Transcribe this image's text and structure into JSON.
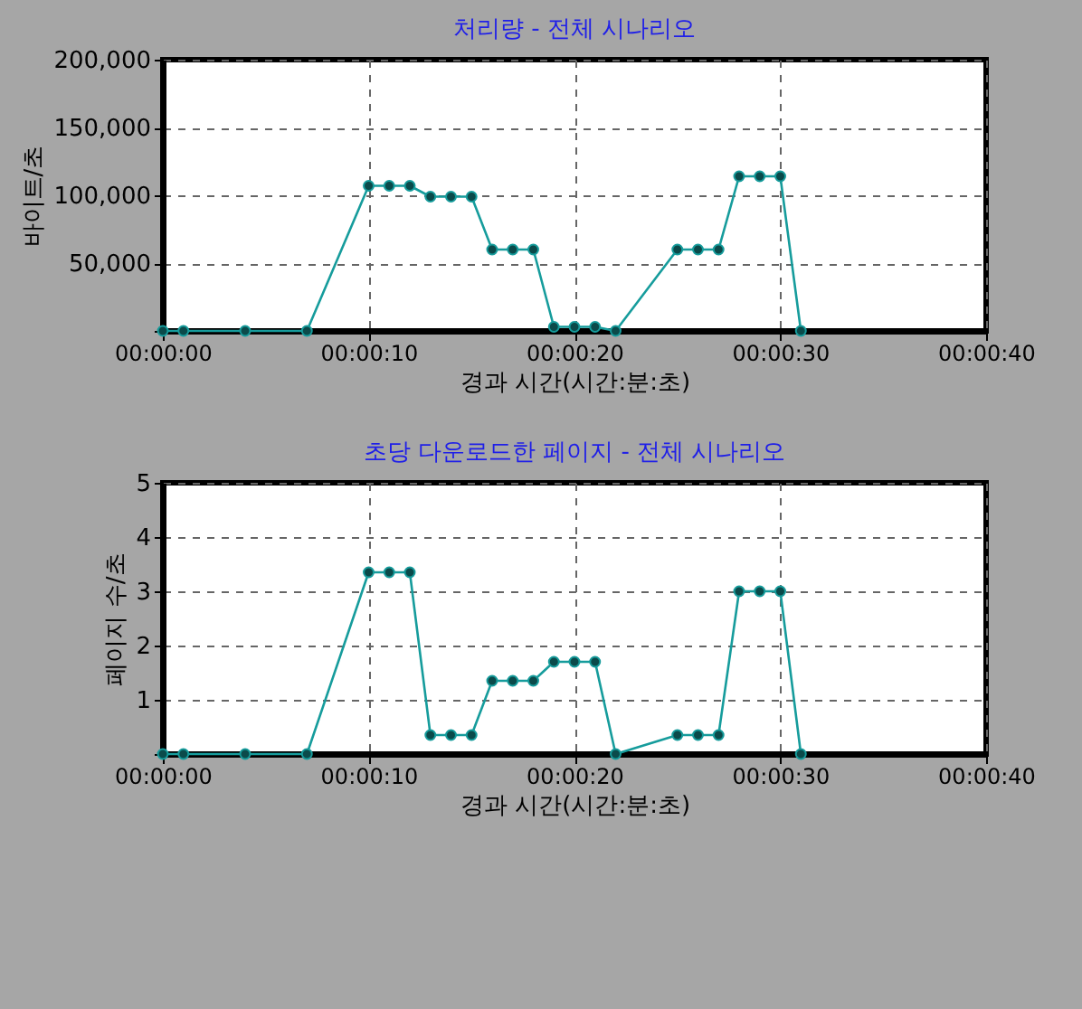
{
  "chart_data": [
    {
      "type": "line",
      "title": "처리량 - 전체 시나리오",
      "xlabel": "경과 시간(시간:분:초)",
      "ylabel": "바이트/초",
      "x": [
        0,
        1,
        4,
        7,
        10,
        11,
        12,
        13,
        14,
        15,
        16,
        17,
        18,
        19,
        20,
        21,
        22,
        25,
        26,
        27,
        28,
        29,
        30,
        31
      ],
      "series": [
        {
          "color": "#169c9c",
          "values": [
            0,
            0,
            0,
            0,
            107000,
            107000,
            107000,
            99000,
            99000,
            99000,
            60000,
            60000,
            60000,
            3000,
            3000,
            3000,
            0,
            60000,
            60000,
            60000,
            114000,
            114000,
            114000,
            0
          ]
        }
      ],
      "xlim": [
        0,
        40
      ],
      "xticks": [
        {
          "value": 0,
          "label": "00:00:00"
        },
        {
          "value": 10,
          "label": "00:00:10"
        },
        {
          "value": 20,
          "label": "00:00:20"
        },
        {
          "value": 30,
          "label": "00:00:30"
        },
        {
          "value": 40,
          "label": "00:00:40"
        }
      ],
      "ylim": [
        0,
        200000
      ],
      "yticks": [
        {
          "value": 0,
          "label": null
        },
        {
          "value": 50000,
          "label": "50,000"
        },
        {
          "value": 100000,
          "label": "100,000"
        },
        {
          "value": 150000,
          "label": "150,000"
        },
        {
          "value": 200000,
          "label": "200,000"
        }
      ],
      "grid": true,
      "marker": "circle"
    },
    {
      "type": "line",
      "title": "초당 다운로드한 페이지 - 전체 시나리오",
      "xlabel": "경과 시간(시간:분:초)",
      "ylabel": "페이지 수/초",
      "x": [
        0,
        1,
        4,
        7,
        10,
        11,
        12,
        13,
        14,
        15,
        16,
        17,
        18,
        19,
        20,
        21,
        22,
        25,
        26,
        27,
        28,
        29,
        30,
        31
      ],
      "series": [
        {
          "color": "#169c9c",
          "values": [
            0,
            0,
            0,
            0,
            3.35,
            3.35,
            3.35,
            0.35,
            0.35,
            0.35,
            1.35,
            1.35,
            1.35,
            1.7,
            1.7,
            1.7,
            0,
            0.35,
            0.35,
            0.35,
            3.0,
            3.0,
            3.0,
            0
          ]
        }
      ],
      "xlim": [
        0,
        40
      ],
      "xticks": [
        {
          "value": 0,
          "label": "00:00:00"
        },
        {
          "value": 10,
          "label": "00:00:10"
        },
        {
          "value": 20,
          "label": "00:00:20"
        },
        {
          "value": 30,
          "label": "00:00:30"
        },
        {
          "value": 40,
          "label": "00:00:40"
        }
      ],
      "ylim": [
        0,
        5
      ],
      "yticks": [
        {
          "value": 0,
          "label": null
        },
        1,
        2,
        3,
        4,
        5
      ],
      "grid": true,
      "marker": "circle"
    }
  ]
}
